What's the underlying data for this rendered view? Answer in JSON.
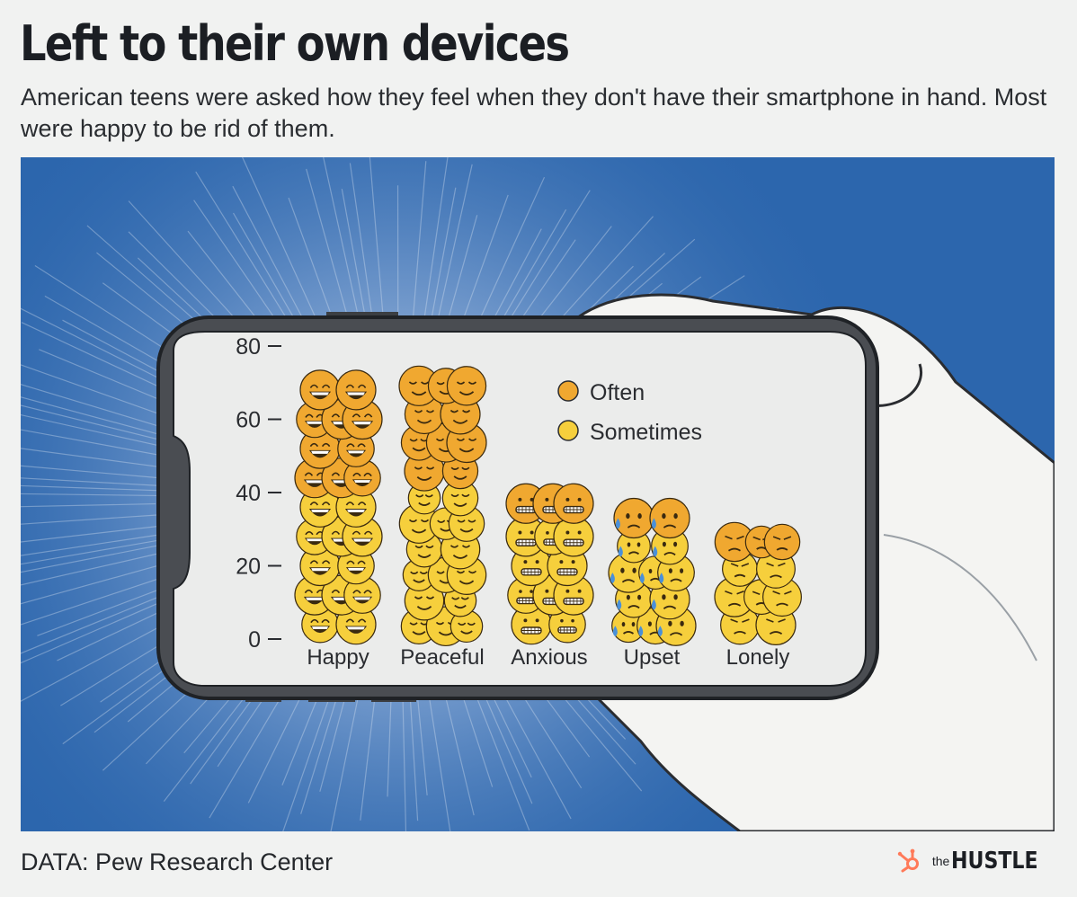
{
  "title": "Left to their own devices",
  "subtitle": "American teens were asked how they feel when they don't have their smartphone in hand. Most were happy to be rid of them.",
  "source": "DATA: Pew Research Center",
  "brand": {
    "prefix": "the",
    "name": "HUSTLE",
    "icon": "sprocket-icon",
    "color": "#ff7a59"
  },
  "colors": {
    "background": "#2c66ad",
    "often": "#f0a830",
    "sometimes": "#f6cf3c",
    "screen": "#ebeceb"
  },
  "chart_data": {
    "type": "bar",
    "categories": [
      "Happy",
      "Peaceful",
      "Anxious",
      "Upset",
      "Lonely"
    ],
    "series": [
      {
        "name": "Often",
        "values": [
          32,
          31,
          10,
          8,
          7
        ]
      },
      {
        "name": "Sometimes",
        "values": [
          40,
          42,
          32,
          29,
          23
        ]
      }
    ],
    "yticks": [
      "0",
      "20",
      "40",
      "60",
      "80"
    ],
    "ylim": [
      0,
      80
    ],
    "xlabel": "",
    "ylabel": "",
    "legend_position": "top-right",
    "faces": [
      "grinning-face",
      "relieved-face",
      "grimacing-face",
      "anxious-sweat-face",
      "sad-face"
    ]
  }
}
